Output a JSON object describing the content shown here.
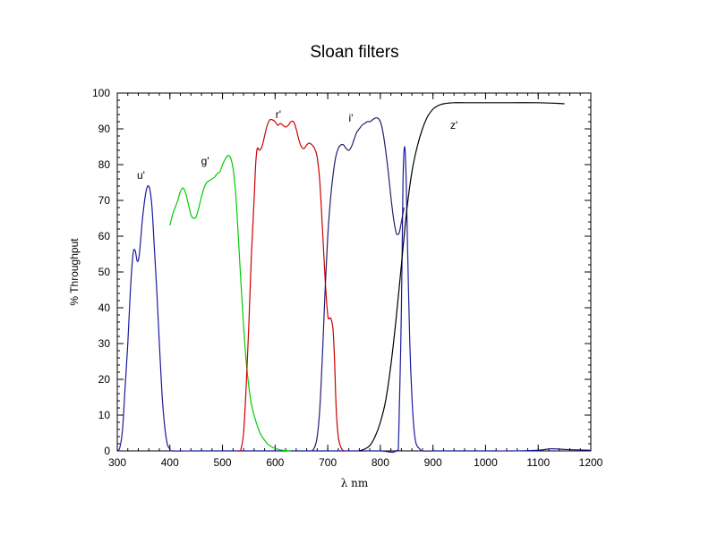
{
  "chart_data": {
    "type": "line",
    "title": "Sloan filters",
    "xlabel": "λ nm",
    "ylabel": "% Throughput",
    "xlim": [
      300,
      1200
    ],
    "ylim": [
      0,
      100
    ],
    "xticks": [
      300,
      400,
      500,
      600,
      700,
      800,
      900,
      1000,
      1100,
      1200
    ],
    "yticks": [
      0,
      10,
      20,
      30,
      40,
      50,
      60,
      70,
      80,
      90,
      100
    ],
    "x_minor_step": 20,
    "y_minor_step": 2,
    "grid": false,
    "legend": "none",
    "series": [
      {
        "name": "u'",
        "color": "#1a1a9c",
        "points": [
          [
            300,
            0
          ],
          [
            305,
            1
          ],
          [
            310,
            6
          ],
          [
            315,
            18
          ],
          [
            320,
            30
          ],
          [
            325,
            45
          ],
          [
            330,
            55
          ],
          [
            334,
            56
          ],
          [
            338,
            53
          ],
          [
            342,
            55
          ],
          [
            348,
            65
          ],
          [
            354,
            72
          ],
          [
            358,
            74
          ],
          [
            362,
            73
          ],
          [
            366,
            68
          ],
          [
            370,
            58
          ],
          [
            375,
            45
          ],
          [
            380,
            30
          ],
          [
            385,
            16
          ],
          [
            390,
            7
          ],
          [
            395,
            2
          ],
          [
            400,
            0.5
          ],
          [
            405,
            0
          ],
          [
            450,
            0
          ],
          [
            500,
            0
          ],
          [
            550,
            0
          ],
          [
            600,
            0
          ],
          [
            650,
            0
          ],
          [
            700,
            0
          ],
          [
            750,
            0
          ],
          [
            800,
            0
          ],
          [
            830,
            0
          ],
          [
            835,
            5
          ],
          [
            840,
            40
          ],
          [
            843,
            75
          ],
          [
            846,
            85
          ],
          [
            849,
            76
          ],
          [
            852,
            55
          ],
          [
            856,
            30
          ],
          [
            860,
            15
          ],
          [
            864,
            6
          ],
          [
            868,
            2
          ],
          [
            875,
            0.5
          ],
          [
            880,
            0
          ],
          [
            900,
            0
          ],
          [
            950,
            0
          ],
          [
            1000,
            0
          ],
          [
            1050,
            0
          ],
          [
            1100,
            0.2
          ],
          [
            1125,
            0.6
          ],
          [
            1150,
            0.4
          ],
          [
            1200,
            0.2
          ]
        ]
      },
      {
        "name": "g'",
        "color": "#00cc00",
        "points": [
          [
            400,
            63
          ],
          [
            405,
            66
          ],
          [
            410,
            68
          ],
          [
            415,
            70
          ],
          [
            420,
            72.5
          ],
          [
            425,
            73.5
          ],
          [
            430,
            72
          ],
          [
            435,
            69
          ],
          [
            440,
            66
          ],
          [
            445,
            65
          ],
          [
            450,
            65.5
          ],
          [
            455,
            68
          ],
          [
            460,
            71
          ],
          [
            465,
            73.5
          ],
          [
            470,
            75
          ],
          [
            475,
            75.5
          ],
          [
            480,
            76
          ],
          [
            485,
            76.5
          ],
          [
            490,
            77.5
          ],
          [
            495,
            78
          ],
          [
            500,
            80
          ],
          [
            505,
            81.5
          ],
          [
            510,
            82.5
          ],
          [
            515,
            82
          ],
          [
            520,
            79
          ],
          [
            525,
            72
          ],
          [
            530,
            60
          ],
          [
            535,
            47
          ],
          [
            540,
            35
          ],
          [
            545,
            25
          ],
          [
            550,
            18
          ],
          [
            555,
            13
          ],
          [
            560,
            10
          ],
          [
            565,
            7.5
          ],
          [
            570,
            5.5
          ],
          [
            575,
            4
          ],
          [
            580,
            3
          ],
          [
            585,
            2
          ],
          [
            590,
            1.5
          ],
          [
            595,
            1
          ],
          [
            600,
            0.7
          ],
          [
            610,
            0.3
          ],
          [
            620,
            0.1
          ],
          [
            630,
            0
          ]
        ]
      },
      {
        "name": "r'",
        "color": "#cc0000",
        "points": [
          [
            530,
            0
          ],
          [
            535,
            0.5
          ],
          [
            540,
            5
          ],
          [
            545,
            18
          ],
          [
            550,
            35
          ],
          [
            555,
            55
          ],
          [
            560,
            70
          ],
          [
            563,
            80
          ],
          [
            566,
            84.5
          ],
          [
            570,
            84
          ],
          [
            575,
            85
          ],
          [
            580,
            88
          ],
          [
            585,
            91
          ],
          [
            590,
            92.5
          ],
          [
            595,
            92.5
          ],
          [
            600,
            92
          ],
          [
            605,
            91
          ],
          [
            610,
            91.5
          ],
          [
            615,
            91
          ],
          [
            620,
            90.5
          ],
          [
            625,
            91
          ],
          [
            630,
            92
          ],
          [
            635,
            92
          ],
          [
            640,
            90
          ],
          [
            645,
            87
          ],
          [
            650,
            85
          ],
          [
            655,
            84.5
          ],
          [
            660,
            85.5
          ],
          [
            665,
            86
          ],
          [
            670,
            85.5
          ],
          [
            675,
            84.5
          ],
          [
            680,
            82
          ],
          [
            685,
            75
          ],
          [
            690,
            62
          ],
          [
            695,
            48
          ],
          [
            700,
            38
          ],
          [
            703,
            37
          ],
          [
            706,
            37
          ],
          [
            710,
            34
          ],
          [
            713,
            25
          ],
          [
            716,
            12
          ],
          [
            720,
            4
          ],
          [
            725,
            1
          ],
          [
            730,
            0
          ]
        ]
      },
      {
        "name": "i'",
        "color": "#2b1b6e",
        "points": [
          [
            670,
            0
          ],
          [
            675,
            1
          ],
          [
            680,
            4
          ],
          [
            685,
            12
          ],
          [
            690,
            27
          ],
          [
            695,
            45
          ],
          [
            700,
            60
          ],
          [
            705,
            70
          ],
          [
            710,
            77
          ],
          [
            715,
            82
          ],
          [
            720,
            84.5
          ],
          [
            725,
            85.5
          ],
          [
            730,
            85.5
          ],
          [
            735,
            84.5
          ],
          [
            740,
            84
          ],
          [
            745,
            85
          ],
          [
            750,
            87
          ],
          [
            755,
            89
          ],
          [
            760,
            90
          ],
          [
            765,
            91
          ],
          [
            770,
            91.5
          ],
          [
            775,
            92
          ],
          [
            780,
            92
          ],
          [
            785,
            92.5
          ],
          [
            790,
            93
          ],
          [
            795,
            93
          ],
          [
            800,
            92
          ],
          [
            805,
            89
          ],
          [
            810,
            84
          ],
          [
            815,
            78
          ],
          [
            820,
            71
          ],
          [
            825,
            65
          ],
          [
            830,
            61
          ],
          [
            833,
            60.5
          ],
          [
            836,
            61
          ],
          [
            840,
            64
          ],
          [
            845,
            68
          ]
        ]
      },
      {
        "name": "z'",
        "color": "#000000",
        "points": [
          [
            760,
            0
          ],
          [
            770,
            0.5
          ],
          [
            780,
            1.5
          ],
          [
            790,
            4
          ],
          [
            800,
            8
          ],
          [
            810,
            14
          ],
          [
            820,
            24
          ],
          [
            830,
            37
          ],
          [
            840,
            52
          ],
          [
            850,
            67
          ],
          [
            860,
            78
          ],
          [
            870,
            85
          ],
          [
            880,
            90
          ],
          [
            890,
            93.5
          ],
          [
            900,
            95.5
          ],
          [
            910,
            96.5
          ],
          [
            920,
            97
          ],
          [
            930,
            97.2
          ],
          [
            940,
            97.3
          ],
          [
            960,
            97.3
          ],
          [
            980,
            97.3
          ],
          [
            1000,
            97.3
          ],
          [
            1050,
            97.3
          ],
          [
            1100,
            97.3
          ],
          [
            1120,
            97.2
          ],
          [
            1140,
            97.1
          ],
          [
            1150,
            97
          ]
        ]
      }
    ],
    "annotations": [
      {
        "text": "u'",
        "x": 345,
        "y": 77
      },
      {
        "text": "g'",
        "x": 467,
        "y": 81
      },
      {
        "text": "r'",
        "x": 606,
        "y": 94
      },
      {
        "text": "i'",
        "x": 744,
        "y": 93
      },
      {
        "text": "z'",
        "x": 940,
        "y": 91
      }
    ]
  }
}
